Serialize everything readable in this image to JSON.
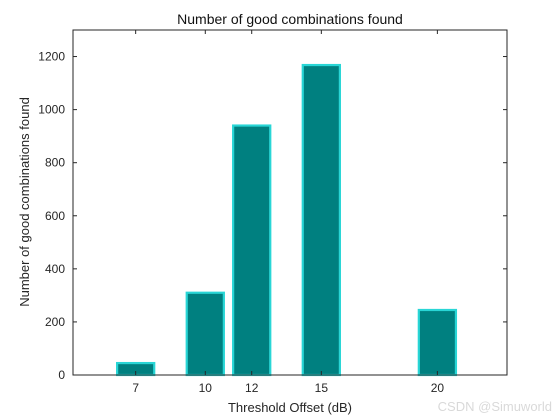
{
  "chart_data": {
    "type": "bar",
    "title": "Number of good combinations found",
    "xlabel": "Threshold Offset (dB)",
    "ylabel": "Number of good combinations found",
    "x": [
      7,
      10,
      12,
      15,
      20
    ],
    "x_tick_labels": [
      "7",
      "10",
      "12",
      "15",
      "20"
    ],
    "values": [
      45,
      310,
      940,
      1168,
      245
    ],
    "xlim": [
      4.3,
      23
    ],
    "ylim": [
      0,
      1300
    ],
    "yticks": [
      0,
      200,
      400,
      600,
      800,
      1000,
      1200
    ],
    "grid": false,
    "bar_width_x_units": 1.6,
    "bar_fill_color": "#008080",
    "bar_edge_color": "#29d6d6"
  },
  "watermark": "CSDN @Simuworld",
  "colors": {
    "axis": "#262626",
    "background": "#ffffff"
  }
}
